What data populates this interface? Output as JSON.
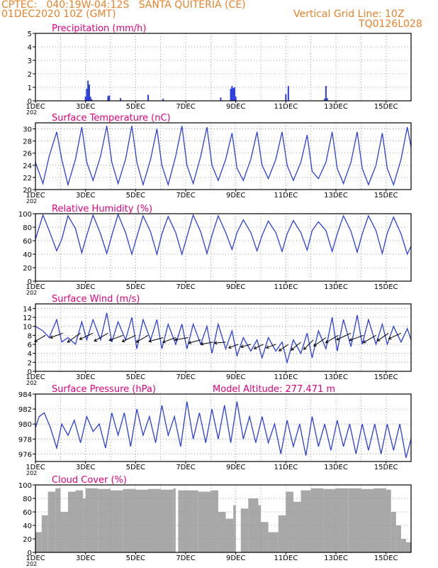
{
  "header": {
    "left_line1": "CPTEC:   040:19W-04:12S   SANTA QUITERIA (CE)",
    "left_line2": "01DEC2020 10Z (GMT)",
    "right_line1": "Vertical Grid Line: 10Z",
    "right_line2": "TQ0126L028"
  },
  "colors": {
    "header": "#e8822a",
    "title": "#e0007c",
    "series": "#2b3fe0",
    "wind_arrow": "#000000",
    "cloud": "#a8a8a8",
    "grid": "#8a8a8a"
  },
  "x_axis": {
    "day_start": 1,
    "day_end": 16,
    "tick_days": [
      1,
      3,
      5,
      7,
      9,
      11,
      13,
      15
    ],
    "tick_labels": [
      "1DEC",
      "3DEC",
      "5DEC",
      "7DEC",
      "9DEC",
      "11DEC",
      "13DEC",
      "15DEC"
    ],
    "sub_label": "202"
  },
  "chart_data": [
    {
      "type": "bar",
      "title": "Precipitation (mm/h)",
      "ylim": [
        0,
        5
      ],
      "yticks": [
        0,
        1,
        2,
        3,
        4,
        5
      ],
      "grid": true,
      "x_days": [
        3.0,
        3.05,
        3.1,
        3.15,
        3.2,
        3.25,
        3.9,
        3.95,
        4.4,
        5.5,
        6.1,
        8.4,
        8.8,
        8.85,
        8.9,
        8.95,
        9.0,
        11.0,
        11.1,
        12.55,
        12.6,
        12.65
      ],
      "values": [
        0.3,
        0.9,
        1.5,
        1.2,
        0.3,
        0.1,
        0.35,
        0.4,
        0.2,
        0.45,
        0.15,
        0.25,
        0.9,
        1.1,
        0.95,
        1.0,
        0.3,
        0.5,
        1.1,
        0.15,
        1.1,
        0.2
      ]
    },
    {
      "type": "line",
      "title": "Surface Temperature (nC)",
      "ylim": [
        20,
        31
      ],
      "yticks": [
        20,
        22,
        24,
        26,
        28,
        30
      ],
      "grid": true,
      "x_days": [
        1.0,
        1.3,
        1.55,
        1.85,
        2.05,
        2.3,
        2.6,
        2.85,
        3.05,
        3.3,
        3.6,
        3.85,
        4.05,
        4.3,
        4.6,
        4.85,
        5.05,
        5.3,
        5.6,
        5.85,
        6.05,
        6.3,
        6.6,
        6.85,
        7.05,
        7.3,
        7.6,
        7.85,
        8.05,
        8.3,
        8.6,
        8.85,
        9.05,
        9.3,
        9.6,
        9.85,
        10.05,
        10.3,
        10.6,
        10.85,
        11.05,
        11.3,
        11.6,
        11.85,
        12.05,
        12.3,
        12.6,
        12.85,
        13.05,
        13.3,
        13.6,
        13.85,
        14.05,
        14.3,
        14.6,
        14.85,
        15.05,
        15.3,
        15.6,
        15.85,
        16.0
      ],
      "values": [
        24.5,
        21.0,
        25.5,
        29.5,
        25.0,
        20.8,
        25.0,
        30.3,
        24.5,
        21.5,
        25.5,
        30.5,
        24.5,
        21.0,
        25.0,
        30.5,
        24.5,
        20.8,
        25.0,
        30.0,
        24.0,
        20.8,
        25.5,
        30.5,
        24.0,
        21.0,
        25.5,
        30.3,
        24.0,
        21.5,
        25.0,
        29.3,
        23.5,
        21.5,
        25.0,
        29.5,
        24.0,
        21.8,
        25.0,
        29.5,
        24.0,
        21.5,
        24.5,
        29.0,
        23.0,
        21.8,
        24.5,
        29.5,
        23.5,
        21.0,
        24.5,
        29.5,
        23.5,
        20.8,
        24.0,
        29.3,
        23.5,
        20.8,
        25.0,
        30.3,
        27.0
      ]
    },
    {
      "type": "line",
      "title": "Relative Humidity (%)",
      "ylim": [
        0,
        100
      ],
      "yticks": [
        0,
        20,
        40,
        60,
        80,
        100
      ],
      "grid": true,
      "x_days": [
        1.0,
        1.3,
        1.55,
        1.85,
        2.05,
        2.3,
        2.6,
        2.85,
        3.05,
        3.3,
        3.6,
        3.85,
        4.05,
        4.3,
        4.6,
        4.85,
        5.05,
        5.3,
        5.6,
        5.85,
        6.05,
        6.3,
        6.6,
        6.85,
        7.05,
        7.3,
        7.6,
        7.85,
        8.05,
        8.3,
        8.6,
        8.85,
        9.05,
        9.3,
        9.6,
        9.85,
        10.05,
        10.3,
        10.6,
        10.85,
        11.05,
        11.3,
        11.6,
        11.85,
        12.05,
        12.3,
        12.6,
        12.85,
        13.05,
        13.3,
        13.6,
        13.85,
        14.05,
        14.3,
        14.6,
        14.85,
        15.05,
        15.3,
        15.6,
        15.85,
        16.0
      ],
      "values": [
        62,
        98,
        75,
        45,
        62,
        97,
        78,
        42,
        68,
        98,
        70,
        41,
        68,
        99,
        72,
        40,
        66,
        97,
        73,
        40,
        70,
        96,
        72,
        40,
        66,
        98,
        73,
        41,
        68,
        97,
        72,
        47,
        72,
        91,
        72,
        45,
        68,
        89,
        72,
        44,
        70,
        90,
        72,
        46,
        75,
        88,
        75,
        44,
        70,
        97,
        74,
        43,
        70,
        97,
        75,
        41,
        71,
        95,
        70,
        40,
        52
      ]
    },
    {
      "type": "line",
      "title": "Surface Wind (m/s)",
      "ylim": [
        0,
        15
      ],
      "yticks": [
        0,
        2,
        4,
        6,
        8,
        10,
        12,
        14
      ],
      "grid": true,
      "x_days": [
        1.0,
        1.3,
        1.55,
        1.85,
        2.05,
        2.3,
        2.6,
        2.85,
        3.05,
        3.3,
        3.6,
        3.85,
        4.05,
        4.3,
        4.6,
        4.85,
        5.05,
        5.3,
        5.6,
        5.85,
        6.05,
        6.3,
        6.6,
        6.85,
        7.05,
        7.3,
        7.6,
        7.85,
        8.05,
        8.3,
        8.6,
        8.85,
        9.05,
        9.3,
        9.6,
        9.85,
        10.05,
        10.3,
        10.6,
        10.85,
        11.05,
        11.3,
        11.6,
        11.85,
        12.05,
        12.3,
        12.6,
        12.85,
        13.05,
        13.3,
        13.6,
        13.85,
        14.05,
        14.3,
        14.6,
        14.85,
        15.05,
        15.3,
        15.6,
        15.85,
        16.0
      ],
      "values": [
        10.0,
        9.0,
        7.5,
        11.5,
        6.5,
        7.5,
        6.0,
        11.0,
        7.0,
        11.5,
        7.0,
        13.0,
        6.5,
        11.0,
        7.0,
        12.0,
        5.0,
        11.5,
        7.0,
        11.5,
        5.0,
        10.5,
        6.0,
        10.5,
        5.0,
        10.5,
        6.0,
        10.0,
        4.0,
        10.5,
        5.0,
        9.0,
        3.5,
        7.5,
        4.5,
        7.0,
        3.0,
        7.5,
        4.5,
        6.5,
        2.0,
        7.0,
        4.0,
        8.5,
        3.0,
        9.0,
        5.0,
        12.0,
        4.5,
        11.5,
        5.5,
        12.5,
        6.0,
        11.5,
        6.0,
        10.5,
        6.0,
        10.0,
        6.5,
        9.5,
        7.0
      ],
      "arrows_x_days": [
        1.4,
        2.1,
        2.8,
        3.3,
        3.9,
        4.5,
        5.0,
        5.5,
        6.1,
        6.6,
        7.1,
        7.6,
        8.1,
        8.6,
        9.1,
        9.6,
        10.1,
        10.6,
        11.1,
        11.6,
        12.1,
        12.6,
        13.1,
        13.6,
        14.1,
        14.6,
        15.1,
        15.6
      ],
      "arrows_y": [
        8.0,
        8.5,
        8.5,
        8.5,
        8.5,
        8.0,
        8.0,
        8.0,
        7.5,
        7.5,
        7.5,
        7.0,
        6.5,
        6.5,
        6.0,
        6.0,
        6.0,
        6.0,
        6.0,
        6.5,
        7.0,
        7.5,
        8.0,
        8.5,
        8.0,
        8.0,
        8.5,
        8.5
      ],
      "arrows_dir_deg": [
        210,
        200,
        215,
        205,
        210,
        200,
        205,
        210,
        195,
        200,
        190,
        195,
        190,
        185,
        200,
        195,
        205,
        200,
        215,
        220,
        225,
        215,
        210,
        205,
        200,
        210,
        215,
        205
      ],
      "arrows_speed": [
        5.5,
        6.0,
        7.0,
        6.5,
        7.0,
        6.5,
        6.5,
        6.0,
        6.5,
        6.0,
        6.0,
        5.5,
        5.5,
        5.0,
        4.5,
        4.5,
        4.5,
        4.5,
        5.0,
        5.5,
        6.0,
        6.5,
        6.5,
        7.0,
        6.5,
        6.5,
        6.0,
        6.0
      ]
    },
    {
      "type": "line",
      "title": "Surface Pressure (hPa)",
      "annotation": "Model Altitude: 277.471  m",
      "ylim": [
        975,
        984
      ],
      "yticks": [
        976,
        978,
        980,
        982,
        984
      ],
      "grid": true,
      "x_days": [
        1.0,
        1.15,
        1.35,
        1.6,
        1.85,
        2.05,
        2.3,
        2.55,
        2.8,
        3.05,
        3.3,
        3.55,
        3.8,
        4.05,
        4.3,
        4.55,
        4.8,
        5.05,
        5.3,
        5.55,
        5.8,
        6.05,
        6.3,
        6.55,
        6.8,
        7.05,
        7.3,
        7.55,
        7.8,
        8.05,
        8.3,
        8.55,
        8.8,
        9.05,
        9.3,
        9.55,
        9.8,
        10.05,
        10.3,
        10.55,
        10.8,
        11.05,
        11.3,
        11.55,
        11.8,
        12.05,
        12.3,
        12.55,
        12.8,
        13.05,
        13.3,
        13.55,
        13.8,
        14.05,
        14.3,
        14.55,
        14.8,
        15.05,
        15.3,
        15.55,
        15.8,
        16.0
      ],
      "values": [
        979.5,
        981.0,
        981.5,
        979.5,
        976.8,
        980.0,
        978.5,
        980.5,
        977.5,
        981.0,
        979.0,
        980.0,
        976.8,
        981.5,
        978.5,
        981.5,
        977.0,
        982.0,
        978.5,
        981.0,
        977.5,
        982.5,
        978.5,
        981.0,
        977.0,
        983.0,
        978.0,
        981.5,
        977.5,
        982.0,
        978.0,
        982.5,
        977.5,
        983.0,
        978.0,
        981.0,
        977.5,
        981.0,
        977.5,
        980.0,
        976.0,
        980.5,
        977.0,
        980.0,
        975.8,
        981.0,
        977.0,
        980.0,
        976.5,
        980.5,
        977.0,
        980.0,
        976.0,
        980.0,
        976.5,
        980.0,
        976.0,
        980.0,
        976.5,
        980.0,
        975.5,
        978.0
      ]
    },
    {
      "type": "area",
      "title": "Cloud Cover (%)",
      "ylim": [
        0,
        100
      ],
      "yticks": [
        0,
        20,
        40,
        60,
        80,
        100
      ],
      "grid": true,
      "x_days": [
        1.0,
        1.25,
        1.5,
        1.8,
        2.0,
        2.3,
        2.6,
        2.9,
        3.0,
        3.5,
        4.0,
        4.5,
        5.0,
        5.5,
        6.0,
        6.5,
        6.6,
        6.7,
        7.0,
        7.5,
        8.0,
        8.3,
        8.6,
        8.9,
        9.0,
        9.2,
        9.5,
        9.9,
        10.0,
        10.3,
        10.7,
        11.0,
        11.3,
        11.6,
        12.0,
        12.5,
        13.0,
        13.5,
        14.0,
        14.5,
        15.0,
        15.2,
        15.4,
        15.6,
        15.8,
        16.0
      ],
      "values": [
        30,
        55,
        90,
        95,
        60,
        90,
        92,
        80,
        95,
        94,
        92,
        94,
        93,
        94,
        93,
        95,
        0,
        92,
        92,
        90,
        92,
        60,
        50,
        70,
        0,
        65,
        80,
        70,
        45,
        30,
        55,
        90,
        75,
        92,
        95,
        94,
        95,
        95,
        94,
        95,
        93,
        60,
        40,
        20,
        15,
        10
      ]
    }
  ]
}
